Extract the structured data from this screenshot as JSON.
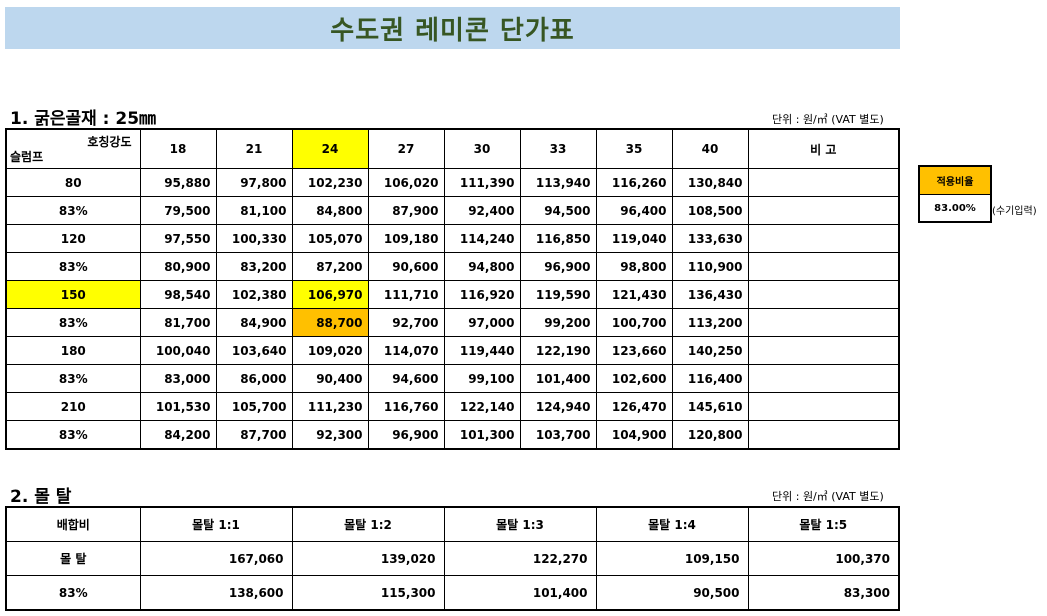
{
  "title": "수도권 레미콘 단가표",
  "section1": {
    "title": "1. 굵은골재 : 25㎜",
    "unit": "단위 : 원/㎥ (VAT 별도)",
    "corner_top": "호칭강도",
    "corner_bottom": "슬럼프",
    "strengths": [
      "18",
      "21",
      "24",
      "27",
      "30",
      "33",
      "35",
      "40"
    ],
    "remarks_header": "비  고",
    "rows": [
      {
        "label": "80",
        "values": [
          "95,880",
          "97,800",
          "102,230",
          "106,020",
          "111,390",
          "113,940",
          "116,260",
          "130,840"
        ]
      },
      {
        "label": "83%",
        "values": [
          "79,500",
          "81,100",
          "84,800",
          "87,900",
          "92,400",
          "94,500",
          "96,400",
          "108,500"
        ]
      },
      {
        "label": "120",
        "values": [
          "97,550",
          "100,330",
          "105,070",
          "109,180",
          "114,240",
          "116,850",
          "119,040",
          "133,630"
        ]
      },
      {
        "label": "83%",
        "values": [
          "80,900",
          "83,200",
          "87,200",
          "90,600",
          "94,800",
          "96,900",
          "98,800",
          "110,900"
        ]
      },
      {
        "label": "150",
        "values": [
          "98,540",
          "102,380",
          "106,970",
          "111,710",
          "116,920",
          "119,590",
          "121,430",
          "136,430"
        ]
      },
      {
        "label": "83%",
        "values": [
          "81,700",
          "84,900",
          "88,700",
          "92,700",
          "97,000",
          "99,200",
          "100,700",
          "113,200"
        ]
      },
      {
        "label": "180",
        "values": [
          "100,040",
          "103,640",
          "109,020",
          "114,070",
          "119,440",
          "122,190",
          "123,660",
          "140,250"
        ]
      },
      {
        "label": "83%",
        "values": [
          "83,000",
          "86,000",
          "90,400",
          "94,600",
          "99,100",
          "101,400",
          "102,600",
          "116,400"
        ]
      },
      {
        "label": "210",
        "values": [
          "101,530",
          "105,700",
          "111,230",
          "116,760",
          "122,140",
          "124,940",
          "126,470",
          "145,610"
        ]
      },
      {
        "label": "83%",
        "values": [
          "84,200",
          "87,700",
          "92,300",
          "96,900",
          "101,300",
          "103,700",
          "104,900",
          "120,800"
        ]
      }
    ]
  },
  "ratio": {
    "label": "적용비율",
    "value": "83.00%",
    "note": "(수기입력)"
  },
  "section2": {
    "title": "2. 몰 탈",
    "unit": "단위 : 원/㎥ (VAT 별도)",
    "header_label": "배합비",
    "mixes": [
      "몰탈 1:1",
      "몰탈 1:2",
      "몰탈 1:3",
      "몰탈 1:4",
      "몰탈 1:5"
    ],
    "rows": [
      {
        "label": "몰 탈",
        "values": [
          "167,060",
          "139,020",
          "122,270",
          "109,150",
          "100,370"
        ]
      },
      {
        "label": "83%",
        "values": [
          "138,600",
          "115,300",
          "101,400",
          "90,500",
          "83,300"
        ]
      }
    ]
  },
  "colors": {
    "banner": "#bdd7ee",
    "title_text": "#375623",
    "highlight_yellow": "#ffff00",
    "highlight_orange": "#ffc000"
  }
}
